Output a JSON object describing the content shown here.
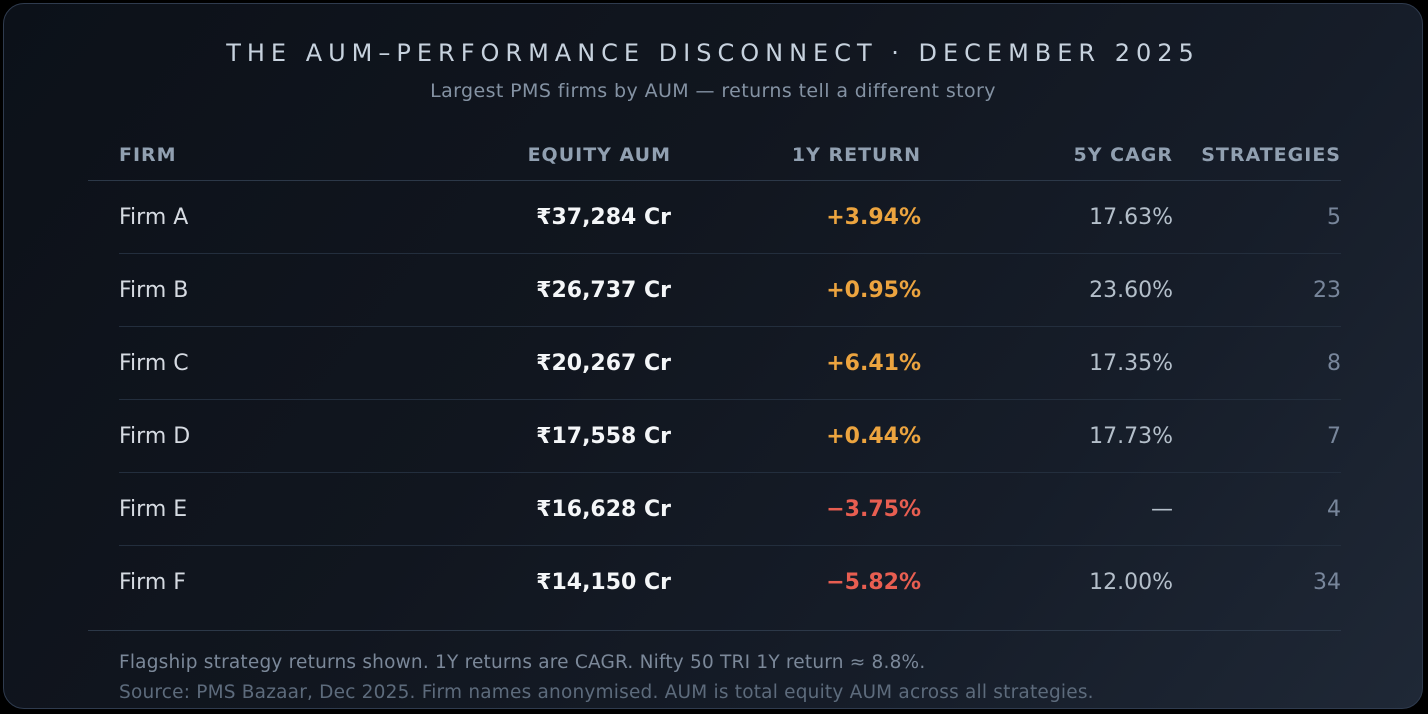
{
  "header": {
    "title": "THE AUM–PERFORMANCE DISCONNECT · DECEMBER 2025",
    "subtitle": "Largest PMS firms by AUM — returns tell a different story"
  },
  "table": {
    "columns": {
      "firm": "FIRM",
      "equity_aum": "EQUITY AUM",
      "return_1y": "1Y RETURN",
      "cagr_5y": "5Y CAGR",
      "strategies": "STRATEGIES"
    },
    "rows": [
      {
        "firm": "Firm A",
        "aum": "₹37,284 Cr",
        "return_1y": "+3.94%",
        "trend": "positive",
        "cagr_5y": "17.63%",
        "strategies": "5"
      },
      {
        "firm": "Firm B",
        "aum": "₹26,737 Cr",
        "return_1y": "+0.95%",
        "trend": "positive",
        "cagr_5y": "23.60%",
        "strategies": "23"
      },
      {
        "firm": "Firm C",
        "aum": "₹20,267 Cr",
        "return_1y": "+6.41%",
        "trend": "positive",
        "cagr_5y": "17.35%",
        "strategies": "8"
      },
      {
        "firm": "Firm D",
        "aum": "₹17,558 Cr",
        "return_1y": "+0.44%",
        "trend": "positive",
        "cagr_5y": "17.73%",
        "strategies": "7"
      },
      {
        "firm": "Firm E",
        "aum": "₹16,628 Cr",
        "return_1y": "−3.75%",
        "trend": "negative",
        "cagr_5y": "—",
        "strategies": "4"
      },
      {
        "firm": "Firm F",
        "aum": "₹14,150 Cr",
        "return_1y": "−5.82%",
        "trend": "negative",
        "cagr_5y": "12.00%",
        "strategies": "34"
      }
    ]
  },
  "footnotes": {
    "line1": "Flagship strategy returns shown. 1Y returns are CAGR. Nifty 50 TRI 1Y return ≈ 8.8%.",
    "line2": "Source: PMS Bazaar, Dec 2025. Firm names anonymised. AUM is total equity AUM across all strategies."
  },
  "colors": {
    "title": "#c7d2de",
    "subtitle": "#8492a3",
    "header": "#91a0b1",
    "firm": "#d6dbe2",
    "aum": "#f4f6f8",
    "positive": "#eca43f",
    "negative": "#e85e51",
    "cagr": "#b4bfca",
    "strategies": "#78869b",
    "row_divider": "#232e3d",
    "strong_divider": "#2c3848",
    "note1": "#7b8899",
    "note2": "#5d6b7c"
  },
  "chart_data": {
    "type": "table",
    "title": "THE AUM–PERFORMANCE DISCONNECT · DECEMBER 2025",
    "subtitle": "Largest PMS firms by AUM — returns tell a different story",
    "columns": [
      "FIRM",
      "EQUITY AUM",
      "1Y RETURN",
      "5Y CAGR",
      "STRATEGIES"
    ],
    "rows": [
      {
        "firm": "Firm A",
        "equity_aum_cr": 37284,
        "return_1y_pct": 3.94,
        "cagr_5y_pct": 17.63,
        "strategies": 5
      },
      {
        "firm": "Firm B",
        "equity_aum_cr": 26737,
        "return_1y_pct": 0.95,
        "cagr_5y_pct": 23.6,
        "strategies": 23
      },
      {
        "firm": "Firm C",
        "equity_aum_cr": 20267,
        "return_1y_pct": 6.41,
        "cagr_5y_pct": 17.35,
        "strategies": 8
      },
      {
        "firm": "Firm D",
        "equity_aum_cr": 17558,
        "return_1y_pct": 0.44,
        "cagr_5y_pct": 17.73,
        "strategies": 7
      },
      {
        "firm": "Firm E",
        "equity_aum_cr": 16628,
        "return_1y_pct": -3.75,
        "cagr_5y_pct": null,
        "strategies": 4
      },
      {
        "firm": "Firm F",
        "equity_aum_cr": 14150,
        "return_1y_pct": -5.82,
        "cagr_5y_pct": 12.0,
        "strategies": 34
      }
    ],
    "notes": [
      "Flagship strategy returns shown. 1Y returns are CAGR. Nifty 50 TRI 1Y return ≈ 8.8%.",
      "Source: PMS Bazaar, Dec 2025. Firm names anonymised. AUM is total equity AUM across all strategies."
    ]
  }
}
